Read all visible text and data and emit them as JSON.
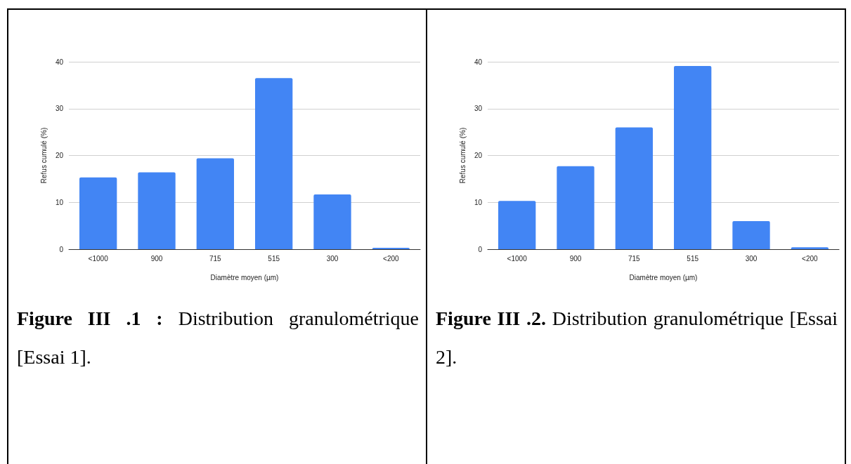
{
  "chart_data": [
    {
      "type": "bar",
      "categories": [
        "<1000",
        "900",
        "715",
        "515",
        "300",
        "<200"
      ],
      "values": [
        15.3,
        16.4,
        19.4,
        36.5,
        11.7,
        0.3
      ],
      "color": "#4285f4",
      "xlabel": "Diamètre moyen (µm)",
      "ylabel": "Refus cumulé (%)",
      "ylim": [
        0,
        40
      ],
      "yticks": [
        0,
        10,
        20,
        30,
        40
      ],
      "grid": "y",
      "annotations": [
        "Figure III .1 :",
        "Distribution granulométrique [Essai 1]."
      ]
    },
    {
      "type": "bar",
      "categories": [
        "<1000",
        "900",
        "715",
        "515",
        "300",
        "<200"
      ],
      "values": [
        10.3,
        17.7,
        26.0,
        39.1,
        6.0,
        0.4
      ],
      "color": "#4285f4",
      "xlabel": "Diamètre moyen (µm)",
      "ylabel": "Refus cumulé (%)",
      "ylim": [
        0,
        40
      ],
      "yticks": [
        0,
        10,
        20,
        30,
        40
      ],
      "grid": "y",
      "annotations": [
        "Figure III .2.",
        "Distribution granulométrique [Essai 2]."
      ]
    }
  ]
}
